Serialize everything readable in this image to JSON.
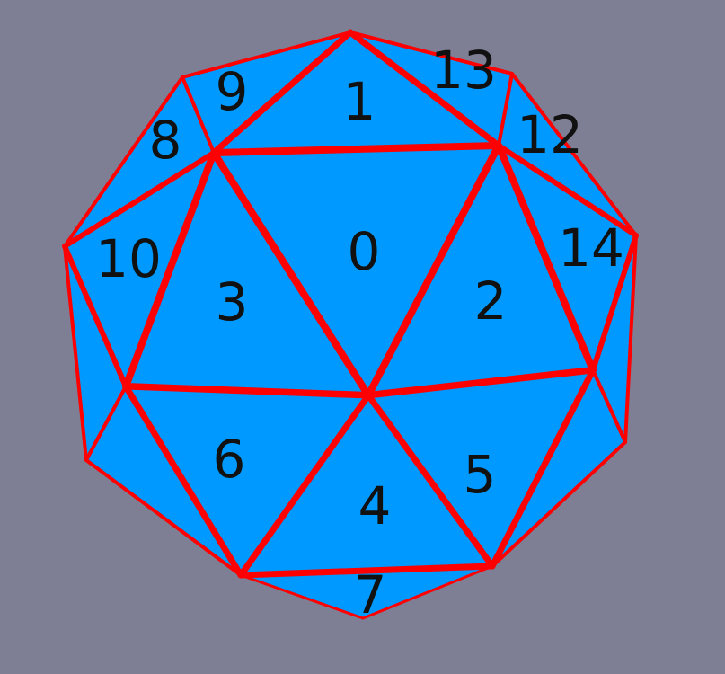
{
  "colors": {
    "background": "#7e7e94",
    "face_fill": "#0099ff",
    "edge": "#ff0000",
    "label": "#111111"
  },
  "faces": [
    {
      "label": "0"
    },
    {
      "label": "1"
    },
    {
      "label": "2"
    },
    {
      "label": "3"
    },
    {
      "label": "4"
    },
    {
      "label": "5"
    },
    {
      "label": "6"
    },
    {
      "label": "7"
    },
    {
      "label": "8"
    },
    {
      "label": "9"
    },
    {
      "label": "10"
    },
    {
      "label": "12"
    },
    {
      "label": "13"
    },
    {
      "label": "14"
    }
  ]
}
